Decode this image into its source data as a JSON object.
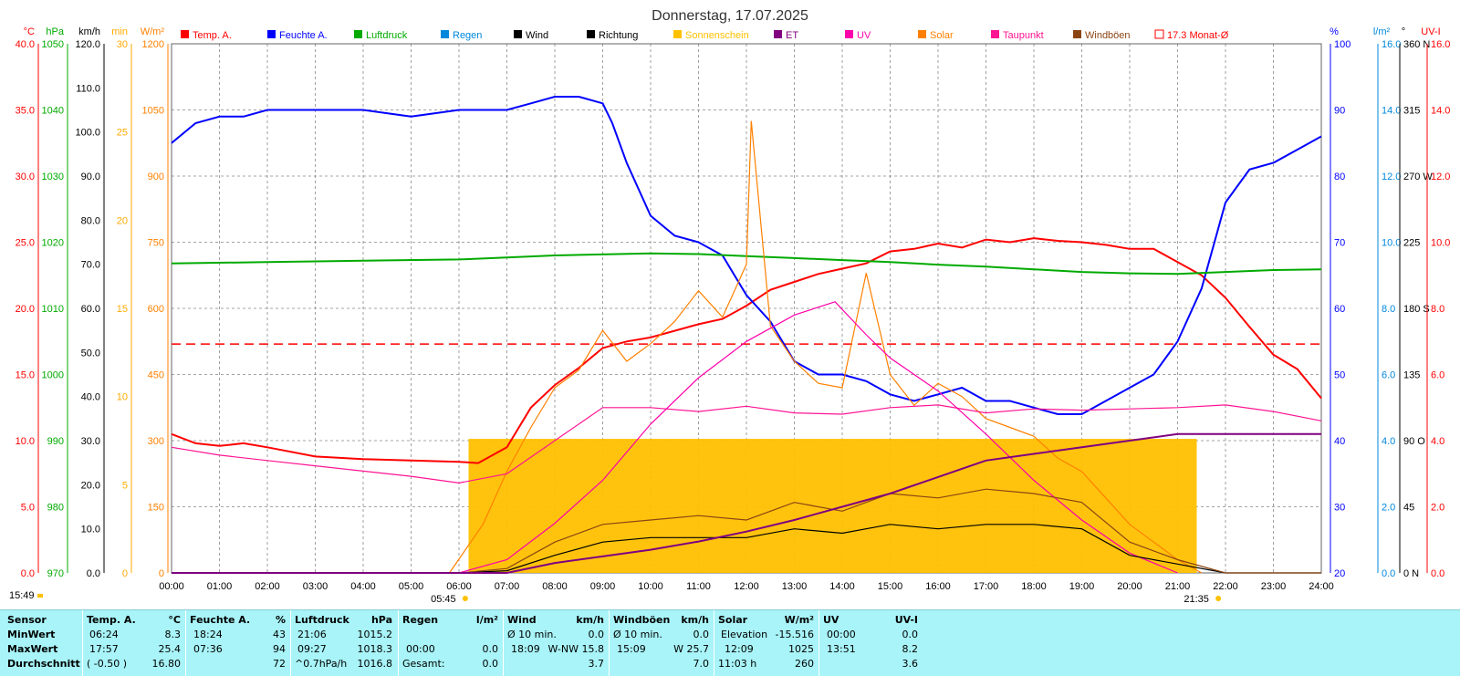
{
  "chart_data": {
    "type": "line",
    "title": "Donnerstag, 17.07.2025",
    "legend": [
      {
        "label": "Temp. A.",
        "color": "#ff0000"
      },
      {
        "label": "Feuchte A.",
        "color": "#0000ff"
      },
      {
        "label": "Luftdruck",
        "color": "#00aa00"
      },
      {
        "label": "Regen",
        "color": "#0088dd"
      },
      {
        "label": "Wind",
        "color": "#000000"
      },
      {
        "label": "Richtung",
        "color": "#000000"
      },
      {
        "label": "Sonnenschein",
        "color": "#ffc000"
      },
      {
        "label": "ET",
        "color": "#800080"
      },
      {
        "label": "UV",
        "color": "#ff00aa"
      },
      {
        "label": "Solar",
        "color": "#ff8000"
      },
      {
        "label": "Taupunkt",
        "color": "#ff1493"
      },
      {
        "label": "Windböen",
        "color": "#8b4513"
      },
      {
        "label": "17.3 Monat-Ø",
        "color": "#ff0000",
        "style": "dashed-box"
      }
    ],
    "axes_left": [
      {
        "unit": "°C",
        "color": "#ff0000",
        "min": 0,
        "max": 40,
        "ticks": [
          "0.0",
          "5.0",
          "10.0",
          "15.0",
          "20.0",
          "25.0",
          "30.0",
          "35.0",
          "40.0"
        ]
      },
      {
        "unit": "hPa",
        "color": "#00aa00",
        "min": 970,
        "max": 1050,
        "ticks": [
          "970",
          "980",
          "990",
          "1000",
          "1010",
          "1020",
          "1030",
          "1040",
          "1050"
        ]
      },
      {
        "unit": "km/h",
        "color": "#000000",
        "min": 0,
        "max": 120,
        "ticks": [
          "0.0",
          "10.0",
          "20.0",
          "30.0",
          "40.0",
          "50.0",
          "60.0",
          "70.0",
          "80.0",
          "90.0",
          "100.0",
          "110.0",
          "120.0"
        ]
      },
      {
        "unit": "min",
        "color": "#ffaa00",
        "min": 0,
        "max": 30,
        "ticks": [
          "0",
          "5",
          "10",
          "15",
          "20",
          "25",
          "30"
        ]
      },
      {
        "unit": "W/m²",
        "color": "#ff8000",
        "min": 0,
        "max": 1200,
        "ticks": [
          "0",
          "150",
          "300",
          "450",
          "600",
          "750",
          "900",
          "1050",
          "1200"
        ]
      }
    ],
    "axes_right": [
      {
        "unit": "%",
        "color": "#0000ff",
        "min": 20,
        "max": 100,
        "ticks": [
          "20",
          "30",
          "40",
          "50",
          "60",
          "70",
          "80",
          "90",
          "100"
        ]
      },
      {
        "unit": "l/m²",
        "color": "#0088dd",
        "min": 0,
        "max": 16,
        "ticks": [
          "0.0",
          "2.0",
          "4.0",
          "6.0",
          "8.0",
          "10.0",
          "12.0",
          "14.0",
          "16.0"
        ]
      },
      {
        "unit": "°",
        "color": "#000000",
        "min": 0,
        "max": 360,
        "ticks": [
          "0 N",
          "45",
          "90 O",
          "135",
          "180 S",
          "225",
          "270 W",
          "315",
          "360 N"
        ]
      },
      {
        "unit": "UV-I",
        "color": "#ff0000",
        "min": 0,
        "max": 16,
        "ticks": [
          "0.0",
          "2.0",
          "4.0",
          "6.0",
          "8.0",
          "10.0",
          "12.0",
          "14.0",
          "16.0"
        ]
      }
    ],
    "x_ticks": [
      "00:00",
      "01:00",
      "02:00",
      "03:00",
      "04:00",
      "05:00",
      "06:00",
      "07:00",
      "08:00",
      "09:00",
      "10:00",
      "11:00",
      "12:00",
      "13:00",
      "14:00",
      "15:00",
      "16:00",
      "17:00",
      "18:00",
      "19:00",
      "20:00",
      "21:00",
      "22:00",
      "23:00",
      "24:00"
    ],
    "sunrise": "05:45",
    "sunset": "21:35",
    "current_time": "15:49",
    "monthly_avg_temp": 17.3,
    "series": [
      {
        "name": "Temp. A.",
        "color": "#ff0000",
        "axis": "°C",
        "x": [
          0,
          0.5,
          1,
          1.5,
          2,
          3,
          4,
          5,
          6,
          6.4,
          7,
          7.5,
          8,
          8.5,
          9,
          9.5,
          10,
          10.5,
          11,
          11.5,
          12,
          12.5,
          13,
          13.5,
          14,
          14.5,
          15,
          15.5,
          16,
          16.5,
          17,
          17.5,
          18,
          18.5,
          19,
          19.5,
          20,
          20.5,
          21,
          21.5,
          22,
          22.5,
          23,
          23.5,
          24
        ],
        "y": [
          10.5,
          9.8,
          9.6,
          9.8,
          9.5,
          8.8,
          8.6,
          8.5,
          8.4,
          8.3,
          9.5,
          12.5,
          14.2,
          15.5,
          17.0,
          17.5,
          17.8,
          18.3,
          18.8,
          19.2,
          20.2,
          21.4,
          22.0,
          22.6,
          23.0,
          23.4,
          24.3,
          24.5,
          24.9,
          24.6,
          25.2,
          25.0,
          25.3,
          25.1,
          25.0,
          24.8,
          24.5,
          24.5,
          23.5,
          22.5,
          20.8,
          18.6,
          16.5,
          15.4,
          13.2
        ]
      },
      {
        "name": "Feuchte A.",
        "color": "#0000ff",
        "axis": "%",
        "x": [
          0,
          0.5,
          1,
          1.5,
          2,
          3,
          4,
          5,
          6,
          7,
          7.5,
          8,
          8.5,
          9,
          9.2,
          9.5,
          10,
          10.5,
          11,
          11.5,
          12,
          12.5,
          13,
          13.5,
          14,
          14.5,
          15,
          15.5,
          16,
          16.5,
          17,
          17.5,
          18,
          18.5,
          19,
          19.5,
          20,
          20.5,
          21,
          21.5,
          22,
          22.5,
          23,
          23.5,
          24
        ],
        "y": [
          85,
          88,
          89,
          89,
          90,
          90,
          90,
          89,
          90,
          90,
          91,
          92,
          92,
          91,
          88,
          82,
          74,
          71,
          70,
          68,
          62,
          58,
          52,
          50,
          50,
          49,
          47,
          46,
          47,
          48,
          46,
          46,
          45,
          44,
          44,
          46,
          48,
          50,
          55,
          63,
          76,
          81,
          82,
          84,
          86
        ]
      },
      {
        "name": "Luftdruck",
        "color": "#00aa00",
        "axis": "hPa",
        "x": [
          0,
          2,
          4,
          6,
          8,
          10,
          11,
          12,
          13,
          14,
          15,
          16,
          17,
          18,
          19,
          20,
          21,
          22,
          23,
          24
        ],
        "y": [
          1016.8,
          1017.0,
          1017.2,
          1017.4,
          1018.0,
          1018.3,
          1018.2,
          1017.9,
          1017.6,
          1017.3,
          1017.0,
          1016.6,
          1016.3,
          1015.9,
          1015.5,
          1015.3,
          1015.2,
          1015.5,
          1015.8,
          1015.9
        ]
      },
      {
        "name": "Solar",
        "color": "#ff8000",
        "axis": "W/m²",
        "x": [
          5.8,
          6.5,
          7,
          7.5,
          8,
          8.5,
          9,
          9.5,
          10,
          10.5,
          11,
          11.5,
          12,
          12.1,
          12.5,
          13,
          13.5,
          14,
          14.5,
          15,
          15.5,
          16,
          16.5,
          17,
          17.5,
          18,
          18.5,
          19,
          19.5,
          20,
          20.5,
          21,
          21.5
        ],
        "y": [
          0,
          110,
          230,
          330,
          420,
          460,
          550,
          480,
          520,
          570,
          640,
          580,
          700,
          1025,
          560,
          480,
          430,
          420,
          680,
          450,
          380,
          430,
          400,
          350,
          330,
          310,
          260,
          230,
          170,
          110,
          70,
          30,
          0
        ]
      },
      {
        "name": "Taupunkt",
        "color": "#ff1493",
        "axis": "°C",
        "x": [
          0,
          1,
          2,
          3,
          4,
          5,
          6,
          7,
          8,
          9,
          10,
          11,
          12,
          13,
          14,
          15,
          16,
          17,
          18,
          19,
          20,
          21,
          22,
          23,
          24
        ],
        "y": [
          9.5,
          8.9,
          8.5,
          8.1,
          7.7,
          7.3,
          6.8,
          7.5,
          10.0,
          12.5,
          12.5,
          12.2,
          12.6,
          12.1,
          12.0,
          12.5,
          12.7,
          12.1,
          12.4,
          12.3,
          12.4,
          12.5,
          12.7,
          12.2,
          11.5
        ]
      },
      {
        "name": "UV",
        "color": "#ff00aa",
        "axis": "UV-I",
        "x": [
          6,
          7,
          8,
          9,
          10,
          11,
          12,
          13,
          13.85,
          14.5,
          15,
          16,
          17,
          18,
          19,
          20,
          21
        ],
        "y": [
          0,
          0.4,
          1.5,
          2.8,
          4.5,
          5.9,
          7.0,
          7.8,
          8.2,
          7.2,
          6.5,
          5.5,
          4.2,
          2.8,
          1.6,
          0.6,
          0
        ]
      },
      {
        "name": "Wind",
        "color": "#000000",
        "axis": "km/h",
        "x": [
          0,
          1,
          2,
          3,
          4,
          5,
          6,
          7,
          8,
          9,
          10,
          11,
          12,
          13,
          14,
          15,
          16,
          17,
          18,
          19,
          20,
          21,
          22,
          23,
          24
        ],
        "y": [
          0,
          0,
          0,
          0,
          0,
          0,
          0,
          0.5,
          4,
          7,
          8,
          8,
          8,
          10,
          9,
          11,
          10,
          11,
          11,
          10,
          4,
          2,
          0,
          0,
          0
        ]
      },
      {
        "name": "Windböen",
        "color": "#8b4513",
        "axis": "km/h",
        "x": [
          0,
          1,
          2,
          3,
          4,
          5,
          6,
          7,
          8,
          9,
          10,
          11,
          12,
          13,
          14,
          15,
          16,
          17,
          18,
          19,
          20,
          21,
          22,
          23,
          24
        ],
        "y": [
          0,
          0,
          0,
          0,
          0,
          0,
          0,
          1,
          7,
          11,
          12,
          13,
          12,
          16,
          14,
          18,
          17,
          19,
          18,
          16,
          7,
          3,
          0,
          0,
          0
        ]
      },
      {
        "name": "ET",
        "color": "#800080",
        "axis": "l/m²",
        "x": [
          0,
          7,
          8,
          9,
          10,
          11,
          12,
          13,
          14,
          15,
          16,
          17,
          18,
          19,
          20,
          21,
          22,
          23,
          24
        ],
        "y": [
          0,
          0,
          0.3,
          0.5,
          0.7,
          0.95,
          1.25,
          1.6,
          2.0,
          2.4,
          2.9,
          3.4,
          3.6,
          3.8,
          4.0,
          4.2,
          4.2,
          4.2,
          4.2
        ]
      }
    ],
    "sunshine_minutes_block": {
      "from": 6.2,
      "to": 21.4,
      "value": 7.6
    }
  },
  "table": {
    "row_labels": [
      "Sensor",
      "MinWert",
      "MaxWert",
      "Durchschnitt"
    ],
    "temp": {
      "h": "Temp. A.",
      "u": "°C",
      "min_t": "06:24",
      "min_v": "8.3",
      "max_t": "17:57",
      "max_v": "25.4",
      "avg_t": "( -0.50 )",
      "avg_v": "16.80"
    },
    "hum": {
      "h": "Feuchte A.",
      "u": "%",
      "min_t": "18:24",
      "min_v": "43",
      "max_t": "07:36",
      "max_v": "94",
      "avg_v": "72"
    },
    "press": {
      "h": "Luftdruck",
      "u": "hPa",
      "min_t": "21:06",
      "min_v": "1015.2",
      "max_t": "09:27",
      "max_v": "1018.3",
      "avg_t": "^0.7hPa/h",
      "avg_v": "1016.8"
    },
    "rain": {
      "h": "Regen",
      "u": "l/m²",
      "max_t": "00:00",
      "max_v": "0.0",
      "avg_t": "Gesamt:",
      "avg_v": "0.0"
    },
    "wind": {
      "h": "Wind",
      "u": "km/h",
      "min_t": "Ø 10 min.",
      "min_v": "0.0",
      "max_t": "18:09",
      "max_d": "W-NW 15.8",
      "avg_v": "3.7"
    },
    "gust": {
      "h": "Windböen",
      "u": "km/h",
      "min_t": "Ø 10 min.",
      "min_v": "0.0",
      "max_t": "15:09",
      "max_d": "W 25.7",
      "avg_v": "7.0"
    },
    "solar": {
      "h": "Solar",
      "u": "W/m²",
      "min_t": "Elevation",
      "min_v": "-15.516",
      "max_t": "12:09",
      "max_v": "1025",
      "avg_t": "11:03 h",
      "avg_v": "260"
    },
    "uv": {
      "h": "UV",
      "u": "UV-I",
      "min_t": "00:00",
      "min_v": "0.0",
      "max_t": "13:51",
      "max_v": "8.2",
      "avg_v": "3.6"
    }
  }
}
